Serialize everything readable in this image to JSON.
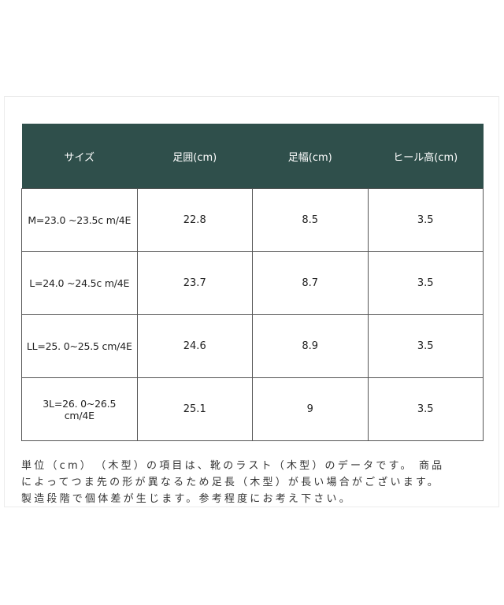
{
  "table": {
    "headers": [
      "サイズ",
      "足囲(cm)",
      "足幅(cm)",
      "ヒール高(cm)"
    ],
    "rows": [
      [
        "M=23.0 ~23.5c m/4E",
        "22.8",
        "8.5",
        "3.5"
      ],
      [
        "L=24.0 ~24.5c m/4E",
        "23.7",
        "8.7",
        "3.5"
      ],
      [
        "LL=25. 0~25.5 cm/4E",
        "24.6",
        "8.9",
        "3.5"
      ],
      [
        "3L=26. 0~26.5\ncm/4E",
        "25.1",
        "9",
        "3.5"
      ]
    ]
  },
  "note": {
    "lines": [
      "単位（cm）　（木型）の項目は、靴のラスト（木型）のデータです。 商品",
      "によってつま先の形が異なるため足長（木型）が長い場合がございます。",
      "製造段階で個体差が生じます。参考程度にお考え下さい。"
    ]
  },
  "colors": {
    "header_bg": "#2f4f4b"
  }
}
